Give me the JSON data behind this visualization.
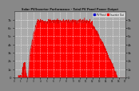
{
  "title": "Solar PV/Inverter Performance - Total PV Panel Power Output",
  "bg_color": "#888888",
  "plot_bg_color": "#aaaaaa",
  "fill_color": "#ff0000",
  "line_color": "#dd0000",
  "grid_color": "#ffffff",
  "ylim": [
    0,
    8
  ],
  "ytick_labels": [
    "7k",
    "6k",
    "5k",
    "4k",
    "3k",
    "2k",
    "1k",
    "0"
  ],
  "ytick_values": [
    7,
    6,
    5,
    4,
    3,
    2,
    1,
    0
  ],
  "legend_pv_color": "#0000cc",
  "legend_inv_color": "#ff0000",
  "num_points": 500,
  "noise_seed": 7
}
